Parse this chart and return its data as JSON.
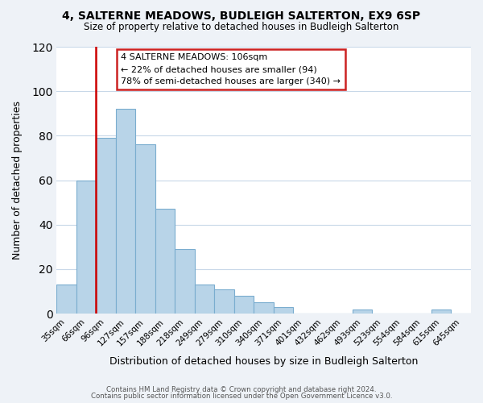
{
  "title1": "4, SALTERNE MEADOWS, BUDLEIGH SALTERTON, EX9 6SP",
  "title2": "Size of property relative to detached houses in Budleigh Salterton",
  "xlabel": "Distribution of detached houses by size in Budleigh Salterton",
  "ylabel": "Number of detached properties",
  "bin_labels": [
    "35sqm",
    "66sqm",
    "96sqm",
    "127sqm",
    "157sqm",
    "188sqm",
    "218sqm",
    "249sqm",
    "279sqm",
    "310sqm",
    "340sqm",
    "371sqm",
    "401sqm",
    "432sqm",
    "462sqm",
    "493sqm",
    "523sqm",
    "554sqm",
    "584sqm",
    "615sqm",
    "645sqm"
  ],
  "bar_values": [
    13,
    60,
    79,
    92,
    76,
    47,
    29,
    13,
    11,
    8,
    5,
    3,
    0,
    0,
    0,
    2,
    0,
    0,
    0,
    2,
    0
  ],
  "bar_color": "#b8d4e8",
  "bar_edgecolor": "#7aadcf",
  "vline_x": 1.5,
  "vline_color": "#cc0000",
  "ylim": [
    0,
    120
  ],
  "yticks": [
    0,
    20,
    40,
    60,
    80,
    100,
    120
  ],
  "annotation_title": "4 SALTERNE MEADOWS: 106sqm",
  "annotation_line1": "← 22% of detached houses are smaller (94)",
  "annotation_line2": "78% of semi-detached houses are larger (340) →",
  "footer1": "Contains HM Land Registry data © Crown copyright and database right 2024.",
  "footer2": "Contains public sector information licensed under the Open Government Licence v3.0.",
  "background_color": "#eef2f7",
  "plot_bg_color": "#ffffff",
  "grid_color": "#c8d8e8"
}
